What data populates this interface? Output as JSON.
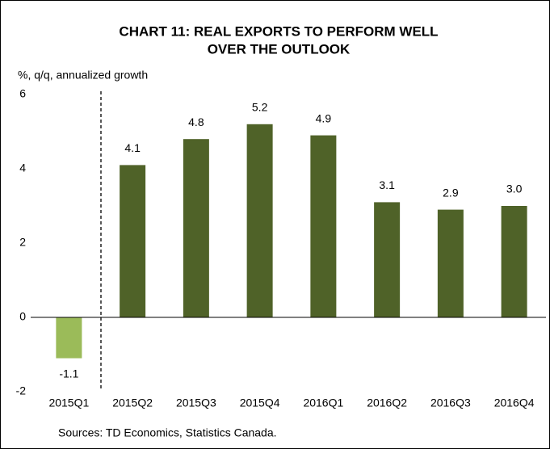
{
  "chart_data": {
    "type": "bar",
    "title": [
      "CHART 11: REAL EXPORTS TO PERFORM WELL",
      "OVER THE OUTLOOK"
    ],
    "y_label": "%, q/q, annualized growth",
    "source": "Sources: TD Economics, Statistics Canada.",
    "categories": [
      "2015Q1",
      "2015Q2",
      "2015Q3",
      "2015Q4",
      "2016Q1",
      "2016Q2",
      "2016Q3",
      "2016Q4"
    ],
    "values": [
      -1.1,
      4.1,
      4.8,
      5.2,
      4.9,
      3.1,
      2.9,
      3.0
    ],
    "value_labels": [
      "-1.1",
      "4.1",
      "4.8",
      "5.2",
      "4.9",
      "3.1",
      "2.9",
      "3.0"
    ],
    "colors": [
      "#9bbb59",
      "#4f6228",
      "#4f6228",
      "#4f6228",
      "#4f6228",
      "#4f6228",
      "#4f6228",
      "#4f6228"
    ],
    "ylim": [
      -2,
      6
    ],
    "yticks": [
      -2,
      0,
      2,
      4,
      6
    ],
    "grid": false
  }
}
